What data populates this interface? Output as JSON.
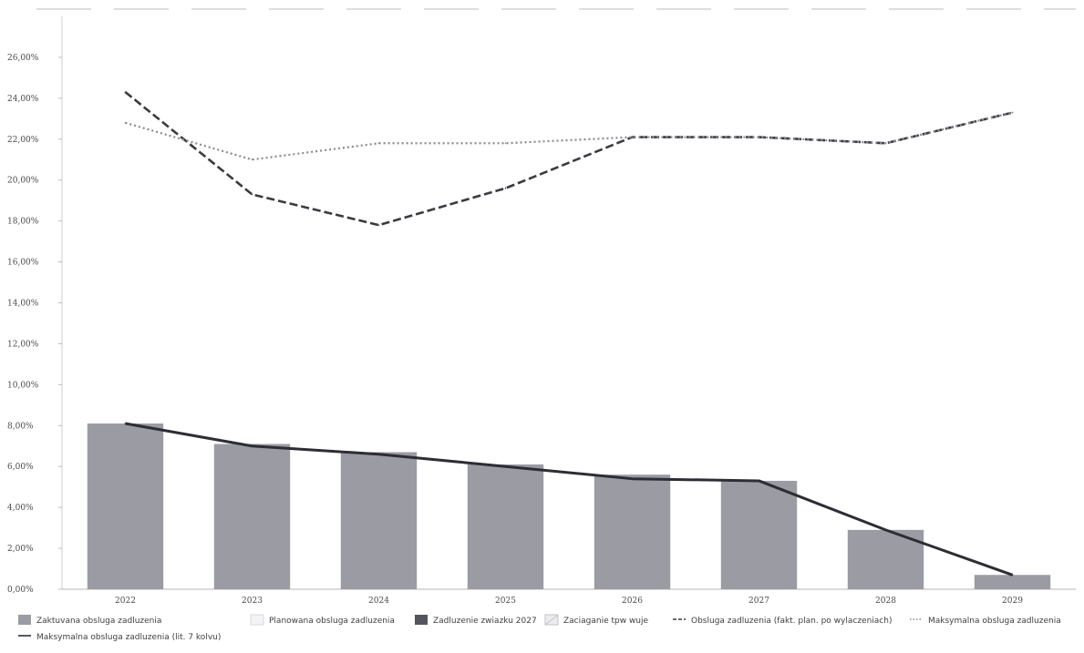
{
  "chart_data": {
    "type": "bar",
    "categories": [
      "2022",
      "2023",
      "2024",
      "2025",
      "2026",
      "2027",
      "2028",
      "2029"
    ],
    "ylim": [
      0,
      28
    ],
    "y_ticks": [
      "0,00%",
      "2,00%",
      "4,00%",
      "6,00%",
      "8,00%",
      "10,00%",
      "12,00%",
      "14,00%",
      "16,00%",
      "18,00%",
      "20,00%",
      "22,00%",
      "24,00%",
      "26,00%"
    ],
    "y_tick_values": [
      0,
      2,
      4,
      6,
      8,
      10,
      12,
      14,
      16,
      18,
      20,
      22,
      24,
      26
    ],
    "grid": false,
    "legend_placement": "bottom",
    "series": [
      {
        "name": "Zaktuvana obsluga zadluzenia",
        "type": "bar",
        "color": "#9b9ba3",
        "values": [
          8.1,
          7.1,
          6.7,
          6.1,
          5.6,
          5.3,
          2.9,
          0.7
        ]
      },
      {
        "name": "Maksymalna obsluga zadluzenia (lit. 7 kolvu)",
        "type": "line",
        "style": "solid",
        "color": "#2d2d35",
        "values": [
          8.1,
          7.0,
          6.6,
          6.0,
          5.4,
          5.3,
          2.9,
          0.7
        ]
      },
      {
        "name": "Obsluga zadluzenia (faktyczna plan. po wylaczeniach)",
        "type": "line",
        "style": "dashed",
        "color": "#3a3a42",
        "values": [
          24.3,
          19.3,
          17.8,
          19.6,
          22.1,
          22.1,
          21.8,
          23.3
        ]
      },
      {
        "name": "Maksymalna obsluga zadluzenia",
        "type": "line",
        "style": "dotted",
        "color": "#8a8a92",
        "values": [
          22.8,
          21.0,
          21.8,
          21.8,
          22.1,
          22.1,
          21.8,
          23.3
        ]
      }
    ],
    "legend": [
      {
        "label": "Zaktuvana obsluga zadluzenia",
        "swatch": "box",
        "color": "#9b9ba3"
      },
      {
        "label": "Planowana obsluga zadluzenia",
        "swatch": "box-outline",
        "color": "#d8d8de"
      },
      {
        "label": "Zadluzenie zwiazku 2027",
        "swatch": "box",
        "color": "#55555d"
      },
      {
        "label": "Zaciaganie tpw wuje",
        "swatch": "box-hatched",
        "color": "#c2c2c8"
      },
      {
        "label": "Obsluga zadluzenia (fakt. plan. po wylaczeniach)",
        "swatch": "dash",
        "color": "#3a3a42"
      },
      {
        "label": "Maksymalna obsluga zadluzenia",
        "swatch": "dot",
        "color": "#8a8a92"
      },
      {
        "label": "Maksymalna obsluga zadluzenia (lit. 7 kolvu)",
        "swatch": "line",
        "color": "#2d2d35"
      }
    ]
  }
}
